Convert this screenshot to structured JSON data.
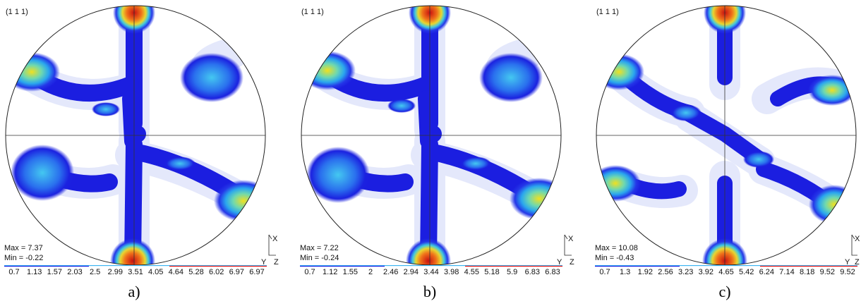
{
  "panels": [
    {
      "plane": "(1 1 1)",
      "max_label": "Max = 7.37",
      "min_label": "Min = -0.22",
      "ticks": [
        "0.7",
        "1.13",
        "1.57",
        "2.03",
        "2.5",
        "2.99",
        "3.51",
        "4.05",
        "4.64",
        "5.28",
        "6.02",
        "6.97",
        "6.97"
      ],
      "caption": "a)"
    },
    {
      "plane": "(1 1 1)",
      "max_label": "Max = 7.22",
      "min_label": "Min = -0.24",
      "ticks": [
        "0.7",
        "1.12",
        "1.55",
        "2",
        "2.46",
        "2.94",
        "3.44",
        "3.98",
        "4.55",
        "5.18",
        "5.9",
        "6.83",
        "6.83"
      ],
      "caption": "b)"
    },
    {
      "plane": "(1 1 1)",
      "max_label": "Max = 10.08",
      "min_label": "Min = -0.43",
      "ticks": [
        "0.7",
        "1.3",
        "1.92",
        "2.56",
        "3.23",
        "3.92",
        "4.65",
        "5.42",
        "6.24",
        "7.14",
        "8.18",
        "9.52",
        "9.52"
      ],
      "caption": "c)"
    }
  ],
  "axes": {
    "x": "X",
    "y": "Y",
    "z": "Z"
  },
  "colors": {
    "low": "#dfe6ff",
    "mid": "#1b1ee0",
    "cyan": "#3fb6f2",
    "high": "#e81416"
  }
}
